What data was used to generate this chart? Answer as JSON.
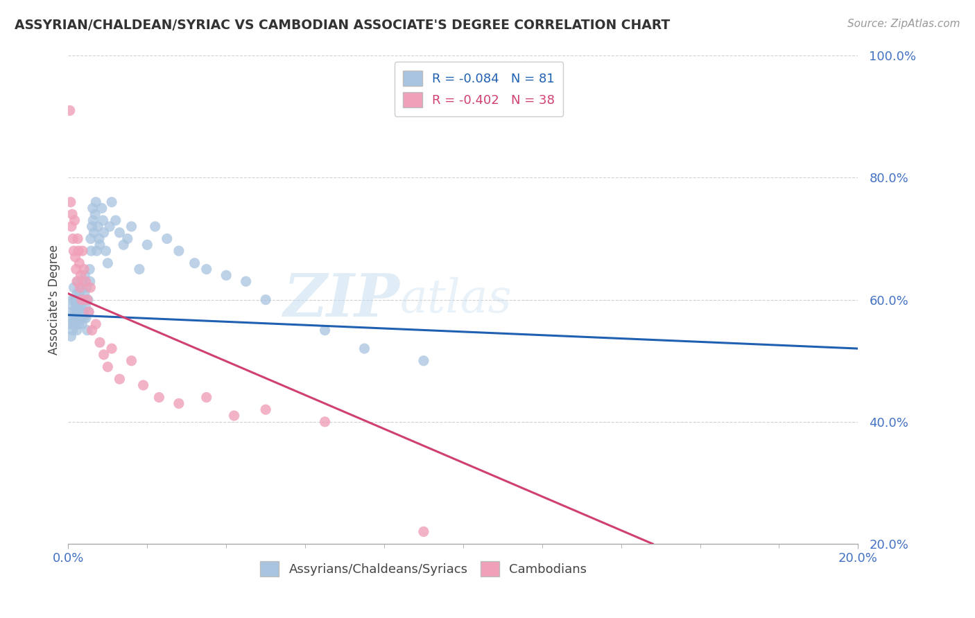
{
  "title": "ASSYRIAN/CHALDEAN/SYRIAC VS CAMBODIAN ASSOCIATE'S DEGREE CORRELATION CHART",
  "source": "Source: ZipAtlas.com",
  "ylabel": "Associate's Degree",
  "xmin": 0.0,
  "xmax": 20.0,
  "ymin": 20.0,
  "ymax": 100.0,
  "blue_R": -0.084,
  "blue_N": 81,
  "pink_R": -0.402,
  "pink_N": 38,
  "blue_color": "#a8c4e0",
  "pink_color": "#f0a0b8",
  "blue_line_color": "#2060b0",
  "pink_line_color": "#d04070",
  "legend_label_blue": "Assyrians/Chaldeans/Syriacs",
  "legend_label_pink": "Cambodians",
  "watermark_zip": "ZIP",
  "watermark_atlas": "atlas",
  "blue_scatter_x": [
    0.05,
    0.07,
    0.08,
    0.1,
    0.1,
    0.11,
    0.12,
    0.13,
    0.14,
    0.15,
    0.15,
    0.17,
    0.18,
    0.19,
    0.2,
    0.2,
    0.22,
    0.22,
    0.23,
    0.24,
    0.25,
    0.26,
    0.27,
    0.28,
    0.3,
    0.3,
    0.31,
    0.32,
    0.33,
    0.35,
    0.36,
    0.37,
    0.38,
    0.4,
    0.41,
    0.42,
    0.44,
    0.45,
    0.46,
    0.48,
    0.5,
    0.52,
    0.54,
    0.55,
    0.57,
    0.58,
    0.6,
    0.62,
    0.63,
    0.65,
    0.68,
    0.7,
    0.72,
    0.75,
    0.78,
    0.8,
    0.85,
    0.88,
    0.9,
    0.95,
    1.0,
    1.05,
    1.1,
    1.2,
    1.3,
    1.4,
    1.5,
    1.6,
    1.8,
    2.0,
    2.2,
    2.5,
    2.8,
    3.2,
    3.5,
    4.0,
    4.5,
    5.0,
    6.5,
    7.5,
    9.0
  ],
  "blue_scatter_y": [
    56,
    54,
    58,
    57,
    60,
    55,
    59,
    56,
    62,
    57,
    60,
    58,
    56,
    60,
    57,
    59,
    55,
    61,
    58,
    63,
    57,
    59,
    56,
    61,
    58,
    60,
    57,
    62,
    59,
    56,
    63,
    60,
    58,
    57,
    61,
    64,
    59,
    57,
    62,
    55,
    60,
    58,
    65,
    63,
    70,
    68,
    72,
    75,
    73,
    71,
    74,
    76,
    68,
    72,
    70,
    69,
    75,
    73,
    71,
    68,
    66,
    72,
    76,
    73,
    71,
    69,
    70,
    72,
    65,
    69,
    72,
    70,
    68,
    66,
    65,
    64,
    63,
    60,
    55,
    52,
    50
  ],
  "pink_scatter_x": [
    0.04,
    0.06,
    0.08,
    0.1,
    0.12,
    0.14,
    0.16,
    0.18,
    0.2,
    0.22,
    0.24,
    0.26,
    0.28,
    0.3,
    0.32,
    0.34,
    0.36,
    0.4,
    0.44,
    0.48,
    0.52,
    0.56,
    0.6,
    0.7,
    0.8,
    0.9,
    1.0,
    1.1,
    1.3,
    1.6,
    1.9,
    2.3,
    2.8,
    3.5,
    4.2,
    5.0,
    6.5,
    9.0
  ],
  "pink_scatter_y": [
    91,
    76,
    72,
    74,
    70,
    68,
    73,
    67,
    65,
    63,
    70,
    68,
    66,
    62,
    64,
    60,
    68,
    65,
    63,
    60,
    58,
    62,
    55,
    56,
    53,
    51,
    49,
    52,
    47,
    50,
    46,
    44,
    43,
    44,
    41,
    42,
    40,
    22
  ],
  "blue_trendline_x": [
    0.0,
    20.0
  ],
  "blue_trendline_y": [
    57.5,
    52.0
  ],
  "pink_trendline_x": [
    0.0,
    14.8
  ],
  "pink_trendline_y": [
    61.0,
    20.0
  ],
  "yticks": [
    20,
    40,
    60,
    80,
    100
  ],
  "xtick_minor": [
    2,
    4,
    6,
    8,
    10,
    12,
    14,
    16,
    18
  ]
}
